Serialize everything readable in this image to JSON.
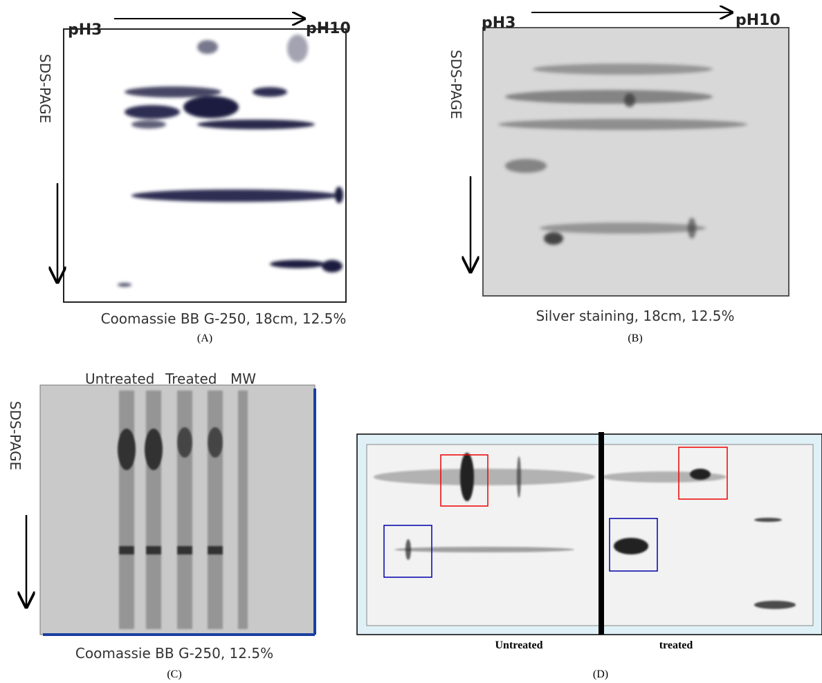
{
  "panels": {
    "a": {
      "ph_start": "pH3",
      "ph_end": "pH10",
      "axis": "SDS-PAGE",
      "caption": "Coomassie  BB G-250,  18cm,   12.5%",
      "label": "(A)"
    },
    "b": {
      "ph_start": "pH3",
      "ph_end": "pH10",
      "axis": "SDS-PAGE",
      "caption": "Silver staining,  18cm,   12.5%",
      "label": "(B)"
    },
    "c": {
      "lanes": [
        "Untreated",
        "Treated",
        "MW"
      ],
      "axis": "SDS-PAGE",
      "caption": "Coomassie  BB G-250,   12.5%",
      "label": "(C)"
    },
    "d": {
      "left": "Untreated",
      "right": "treated",
      "label": "(D)"
    }
  }
}
